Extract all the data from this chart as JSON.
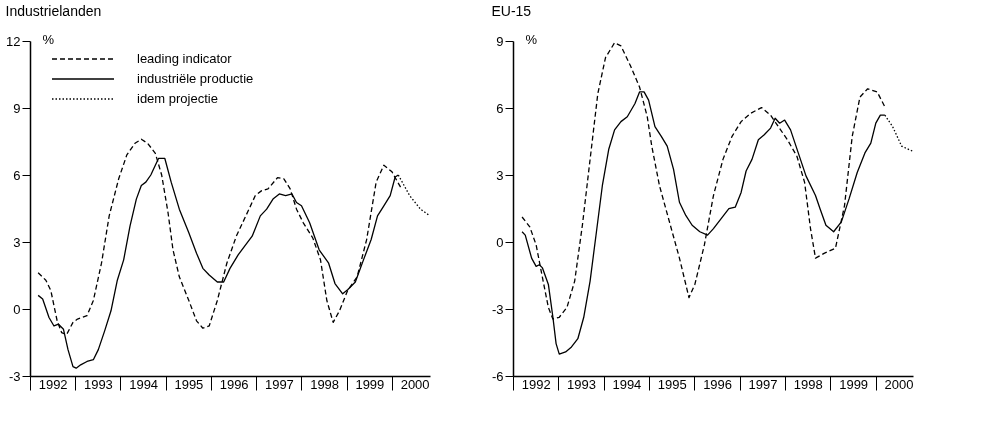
{
  "chart_data": [
    {
      "type": "line",
      "title": "Industrielanden",
      "ylabel": "%",
      "legend": "top left",
      "grid": false,
      "xlim": [
        1992,
        2000.84
      ],
      "ylim": [
        -3,
        12
      ],
      "yticks": [
        -3,
        0,
        3,
        6,
        9,
        12
      ],
      "xticks": [
        {
          "value": 1992,
          "label": null
        },
        {
          "value": 1992.5,
          "label": "1992"
        },
        {
          "value": 1993,
          "label": null
        },
        {
          "value": 1993.5,
          "label": "1993"
        },
        {
          "value": 1994,
          "label": null
        },
        {
          "value": 1994.5,
          "label": "1994"
        },
        {
          "value": 1995,
          "label": null
        },
        {
          "value": 1995.5,
          "label": "1995"
        },
        {
          "value": 1996,
          "label": null
        },
        {
          "value": 1996.5,
          "label": "1996"
        },
        {
          "value": 1997,
          "label": null
        },
        {
          "value": 1997.5,
          "label": "1997"
        },
        {
          "value": 1998,
          "label": null
        },
        {
          "value": 1998.5,
          "label": "1998"
        },
        {
          "value": 1999,
          "label": null
        },
        {
          "value": 1999.5,
          "label": "1999"
        },
        {
          "value": 2000,
          "label": null
        },
        {
          "value": 2000.5,
          "label": "2000"
        }
      ],
      "series": [
        {
          "name": "leading indicator",
          "color": "#000000",
          "line_style": "dashed",
          "x": [
            1992.18,
            1992.35,
            1992.46,
            1992.6,
            1992.7,
            1992.81,
            1992.95,
            1993.05,
            1993.26,
            1993.4,
            1993.58,
            1993.75,
            1993.96,
            1994.14,
            1994.32,
            1994.46,
            1994.6,
            1994.77,
            1994.91,
            1995.05,
            1995.16,
            1995.3,
            1995.51,
            1995.68,
            1995.82,
            1995.96,
            1996.14,
            1996.35,
            1996.56,
            1996.77,
            1996.98,
            1997.12,
            1997.26,
            1997.47,
            1997.61,
            1997.75,
            1997.89,
            1998.04,
            1998.25,
            1998.42,
            1998.56,
            1998.7,
            1998.84,
            1999.02,
            1999.23,
            1999.44,
            1999.65,
            1999.82,
            2000.0,
            2000.21
          ],
          "values": [
            1.62,
            1.29,
            0.83,
            -0.53,
            -1.06,
            -1.14,
            -0.6,
            -0.45,
            -0.3,
            0.38,
            2.05,
            4.17,
            5.83,
            6.9,
            7.42,
            7.6,
            7.42,
            6.97,
            6.0,
            4.32,
            2.65,
            1.44,
            0.38,
            -0.53,
            -0.86,
            -0.76,
            0.38,
            2.05,
            3.26,
            4.17,
            5.08,
            5.3,
            5.38,
            5.88,
            5.83,
            5.38,
            4.47,
            3.86,
            3.18,
            2.2,
            0.38,
            -0.6,
            -0.08,
            0.83,
            1.44,
            3.11,
            5.68,
            6.44,
            6.14,
            5.38
          ]
        },
        {
          "name": "industriële productie",
          "color": "#000000",
          "line_style": "solid",
          "x": [
            1992.18,
            1992.28,
            1992.42,
            1992.53,
            1992.63,
            1992.74,
            1992.84,
            1992.95,
            1993.02,
            1993.12,
            1993.26,
            1993.4,
            1993.51,
            1993.65,
            1993.79,
            1993.93,
            1994.07,
            1994.21,
            1994.35,
            1994.46,
            1994.56,
            1994.67,
            1994.77,
            1994.84,
            1994.98,
            1995.12,
            1995.3,
            1995.51,
            1995.68,
            1995.82,
            1995.96,
            1996.14,
            1996.28,
            1996.42,
            1996.6,
            1996.74,
            1996.91,
            1997.09,
            1997.23,
            1997.37,
            1997.51,
            1997.65,
            1997.79,
            1997.89,
            1998.0,
            1998.18,
            1998.39,
            1998.6,
            1998.74,
            1998.91,
            1999.02,
            1999.19,
            1999.37,
            1999.54,
            1999.68,
            1999.82,
            1999.96,
            2000.07,
            2000.14
          ],
          "values": [
            0.61,
            0.45,
            -0.38,
            -0.76,
            -0.68,
            -0.91,
            -1.82,
            -2.58,
            -2.65,
            -2.5,
            -2.35,
            -2.27,
            -1.82,
            -0.98,
            -0.08,
            1.29,
            2.2,
            3.71,
            4.92,
            5.53,
            5.68,
            6.0,
            6.44,
            6.74,
            6.74,
            5.68,
            4.47,
            3.41,
            2.5,
            1.82,
            1.52,
            1.21,
            1.21,
            1.82,
            2.42,
            2.8,
            3.26,
            4.17,
            4.47,
            4.92,
            5.15,
            5.08,
            5.15,
            4.77,
            4.62,
            3.86,
            2.65,
            2.05,
            1.14,
            0.68,
            0.86,
            1.21,
            2.2,
            3.11,
            4.17,
            4.62,
            5.08,
            5.91,
            6.0
          ]
        },
        {
          "name": "idem projectie",
          "color": "#000000",
          "line_style": "dotted",
          "x": [
            2000.14,
            2000.39,
            2000.63,
            2000.84
          ],
          "values": [
            6.0,
            5.08,
            4.47,
            4.17
          ]
        }
      ]
    },
    {
      "type": "line",
      "title": "EU-15",
      "ylabel": "%",
      "legend": false,
      "grid": false,
      "xlim": [
        1992,
        2000.82
      ],
      "ylim": [
        -6,
        9
      ],
      "yticks": [
        -6,
        -3,
        0,
        3,
        6,
        9
      ],
      "xticks": [
        {
          "value": 1992,
          "label": null
        },
        {
          "value": 1992.5,
          "label": "1992"
        },
        {
          "value": 1993,
          "label": null
        },
        {
          "value": 1993.5,
          "label": "1993"
        },
        {
          "value": 1994,
          "label": null
        },
        {
          "value": 1994.5,
          "label": "1994"
        },
        {
          "value": 1995,
          "label": null
        },
        {
          "value": 1995.5,
          "label": "1995"
        },
        {
          "value": 1996,
          "label": null
        },
        {
          "value": 1996.5,
          "label": "1996"
        },
        {
          "value": 1997,
          "label": null
        },
        {
          "value": 1997.5,
          "label": "1997"
        },
        {
          "value": 1998,
          "label": null
        },
        {
          "value": 1998.5,
          "label": "1998"
        },
        {
          "value": 1999,
          "label": null
        },
        {
          "value": 1999.5,
          "label": "1999"
        },
        {
          "value": 2000,
          "label": null
        },
        {
          "value": 2000.5,
          "label": "2000"
        }
      ],
      "series": [
        {
          "color": "#000000",
          "line_style": "dashed",
          "x": [
            1992.2,
            1992.37,
            1992.51,
            1992.65,
            1992.78,
            1992.88,
            1993.02,
            1993.19,
            1993.36,
            1993.53,
            1993.7,
            1993.87,
            1994.04,
            1994.24,
            1994.38,
            1994.59,
            1994.79,
            1994.96,
            1995.06,
            1995.23,
            1995.47,
            1995.67,
            1995.88,
            1996.01,
            1996.22,
            1996.42,
            1996.63,
            1996.83,
            1997.03,
            1997.24,
            1997.48,
            1997.68,
            1997.85,
            1998.05,
            1998.26,
            1998.43,
            1998.56,
            1998.67,
            1998.87,
            1999.11,
            1999.31,
            1999.48,
            1999.65,
            1999.82,
            2000.03,
            2000.2
          ],
          "values": [
            1.12,
            0.68,
            -0.13,
            -1.6,
            -2.93,
            -3.45,
            -3.37,
            -2.93,
            -1.75,
            0.75,
            3.7,
            6.64,
            8.26,
            8.92,
            8.78,
            7.89,
            6.94,
            5.61,
            4.29,
            2.52,
            0.75,
            -0.72,
            -2.49,
            -1.9,
            -0.13,
            2.08,
            3.7,
            4.73,
            5.39,
            5.76,
            6.02,
            5.68,
            5.17,
            4.58,
            3.84,
            2.67,
            0.6,
            -0.72,
            -0.5,
            -0.28,
            1.63,
            4.73,
            6.49,
            6.86,
            6.72,
            6.05
          ]
        },
        {
          "color": "#000000",
          "line_style": "solid",
          "x": [
            1992.2,
            1992.27,
            1992.41,
            1992.51,
            1992.58,
            1992.65,
            1992.78,
            1992.88,
            1992.95,
            1993.02,
            1993.16,
            1993.29,
            1993.43,
            1993.56,
            1993.7,
            1993.84,
            1993.97,
            1994.11,
            1994.24,
            1994.38,
            1994.52,
            1994.69,
            1994.79,
            1994.89,
            1994.99,
            1995.13,
            1995.27,
            1995.4,
            1995.54,
            1995.67,
            1995.81,
            1995.95,
            1996.12,
            1996.29,
            1996.42,
            1996.59,
            1996.76,
            1996.9,
            1997.03,
            1997.14,
            1997.27,
            1997.41,
            1997.54,
            1997.68,
            1997.78,
            1997.88,
            1997.99,
            1998.12,
            1998.29,
            1998.46,
            1998.67,
            1998.77,
            1998.9,
            1999.07,
            1999.24,
            1999.41,
            1999.59,
            1999.76,
            1999.89,
            2000.0,
            2000.1,
            2000.2
          ],
          "values": [
            0.46,
            0.31,
            -0.72,
            -1.09,
            -1.02,
            -1.16,
            -1.9,
            -3.37,
            -4.55,
            -5.02,
            -4.92,
            -4.7,
            -4.33,
            -3.37,
            -1.75,
            0.46,
            2.52,
            4.14,
            5.02,
            5.39,
            5.61,
            6.2,
            6.72,
            6.72,
            6.35,
            5.17,
            4.73,
            4.29,
            3.25,
            1.78,
            1.19,
            0.75,
            0.46,
            0.31,
            0.6,
            1.05,
            1.49,
            1.56,
            2.22,
            3.18,
            3.7,
            4.58,
            4.8,
            5.1,
            5.54,
            5.32,
            5.46,
            5.02,
            3.99,
            2.96,
            2.08,
            1.49,
            0.75,
            0.46,
            0.9,
            1.93,
            3.11,
            3.99,
            4.43,
            5.32,
            5.68,
            5.68
          ]
        },
        {
          "color": "#000000",
          "line_style": "dotted",
          "x": [
            2000.2,
            2000.37,
            2000.57,
            2000.82
          ],
          "values": [
            5.68,
            5.17,
            4.29,
            4.06
          ]
        }
      ]
    }
  ]
}
